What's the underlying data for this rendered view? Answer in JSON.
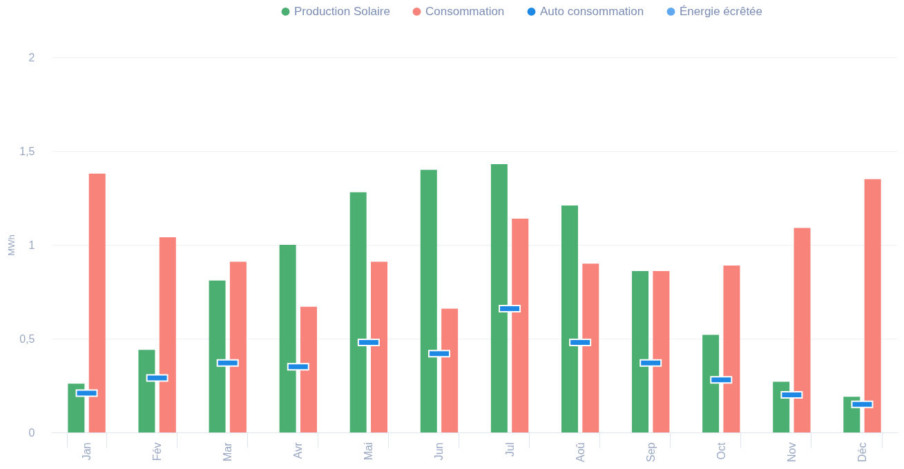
{
  "chart_data": {
    "type": "bar",
    "ylabel": "MWh",
    "categories": [
      "Jan",
      "Fév",
      "Mar",
      "Avr",
      "Mai",
      "Jun",
      "Jul",
      "Aoû",
      "Sep",
      "Oct",
      "Nov",
      "Déc"
    ],
    "series": [
      {
        "name": "Production Solaire",
        "color": "#4caf72",
        "values": [
          0.26,
          0.44,
          0.81,
          1.0,
          1.28,
          1.4,
          1.43,
          1.21,
          0.86,
          0.52,
          0.27,
          0.19
        ]
      },
      {
        "name": "Consommation",
        "color": "#f7837a",
        "values": [
          1.38,
          1.04,
          0.91,
          0.67,
          0.91,
          0.66,
          1.14,
          0.9,
          0.86,
          0.89,
          1.09,
          1.35
        ]
      },
      {
        "name": "Auto consommation",
        "type": "scatter",
        "color": "#1e88e5",
        "values": [
          0.21,
          0.29,
          0.37,
          0.35,
          0.48,
          0.42,
          0.66,
          0.48,
          0.37,
          0.28,
          0.2,
          0.15
        ]
      },
      {
        "name": "Énergie écrêtée",
        "color": "#5fa8f0",
        "values": [
          null,
          null,
          null,
          null,
          null,
          null,
          null,
          null,
          null,
          null,
          null,
          null
        ]
      }
    ],
    "ylim": [
      0,
      2
    ],
    "yticks": [
      0,
      {
        "value": 0.5,
        "label": "0,5"
      },
      1,
      {
        "value": 1.5,
        "label": "1,5"
      },
      2
    ],
    "grid": "y",
    "legend": "top right"
  }
}
